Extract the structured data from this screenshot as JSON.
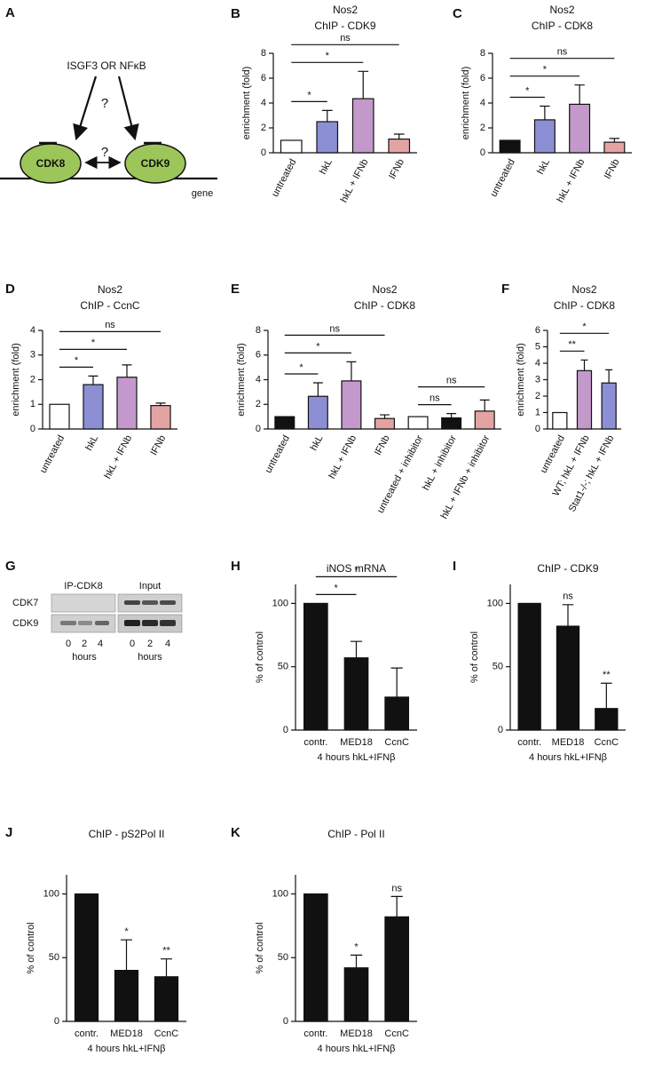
{
  "panel_a": {
    "letter": "A",
    "activators": "ISGF3 OR NFκB",
    "question_1": "?",
    "question_2": "?",
    "kinase_1": "CDK8",
    "kinase_2": "CDK9",
    "gene": "gene"
  },
  "panel_g": {
    "letter": "G",
    "ip_label": "IP-CDK8",
    "input_label": "Input",
    "rows": [
      "CDK7",
      "CDK9"
    ],
    "ip_hours": [
      "0",
      "2",
      "4"
    ],
    "input_hours": [
      "0",
      "2",
      "4"
    ],
    "hours_label": "hours"
  },
  "chart_data": [
    {
      "type": "bar",
      "panel": "B",
      "title": "Nos2",
      "subtitle": "ChIP - CDK9",
      "ylabel": "enrichment (fold)",
      "categories": [
        "untreated",
        "hkL",
        "hkL + IFNb",
        "IFNb"
      ],
      "values": [
        1,
        2.5,
        4.35,
        1.1
      ],
      "errors": [
        null,
        0.9,
        2.2,
        0.4
      ],
      "colors": [
        "#ffffff",
        "#8c8fd3",
        "#c399cc",
        "#e4a3a3"
      ],
      "ylim": [
        0,
        8
      ],
      "yticks": [
        0,
        2,
        4,
        6,
        8
      ],
      "comparisons": [
        {
          "from": "untreated",
          "to": "hkL",
          "label": "*"
        },
        {
          "from": "untreated",
          "to": "hkL + IFNb",
          "label": "*"
        },
        {
          "from": "untreated",
          "to": "IFNb",
          "label": "ns"
        }
      ]
    },
    {
      "type": "bar",
      "panel": "C",
      "title": "Nos2",
      "subtitle": "ChIP - CDK8",
      "ylabel": "enrichment (fold)",
      "categories": [
        "untreated",
        "hkL",
        "hkL + IFNb",
        "IFNb"
      ],
      "values": [
        1,
        2.65,
        3.9,
        0.85
      ],
      "errors": [
        null,
        1.1,
        1.55,
        0.3
      ],
      "colors": [
        "#111111",
        "#8c8fd3",
        "#c399cc",
        "#e4a3a3"
      ],
      "ylim": [
        0,
        8
      ],
      "yticks": [
        0,
        2,
        4,
        6,
        8
      ],
      "comparisons": [
        {
          "from": "untreated",
          "to": "hkL",
          "label": "*"
        },
        {
          "from": "untreated",
          "to": "hkL + IFNb",
          "label": "*"
        },
        {
          "from": "untreated",
          "to": "IFNb",
          "label": "ns"
        }
      ]
    },
    {
      "type": "bar",
      "panel": "D",
      "title": "Nos2",
      "subtitle": "ChIP - CcnC",
      "ylabel": "enrichment (fold)",
      "categories": [
        "untreated",
        "hkL",
        "hkL + IFNb",
        "IFNb"
      ],
      "values": [
        1,
        1.8,
        2.1,
        0.95
      ],
      "errors": [
        null,
        0.35,
        0.5,
        0.1
      ],
      "colors": [
        "#ffffff",
        "#8c8fd3",
        "#c399cc",
        "#e4a3a3"
      ],
      "ylim": [
        0,
        4
      ],
      "yticks": [
        0,
        1,
        2,
        3,
        4
      ],
      "comparisons": [
        {
          "from": "untreated",
          "to": "hkL",
          "label": "*"
        },
        {
          "from": "untreated",
          "to": "hkL + IFNb",
          "label": "*"
        },
        {
          "from": "untreated",
          "to": "IFNb",
          "label": "ns"
        }
      ]
    },
    {
      "type": "bar",
      "panel": "E",
      "title": "Nos2",
      "subtitle": "ChIP - CDK8",
      "ylabel": "enrichment (fold)",
      "categories": [
        "untreated",
        "hkL",
        "hkL + IFNb",
        "IFNb",
        "untreated + inhibitor",
        "hkL + inhibitor",
        "hkL + IFNb + inhibitor"
      ],
      "values": [
        1,
        2.65,
        3.9,
        0.85,
        1,
        0.9,
        1.45
      ],
      "errors": [
        null,
        1.1,
        1.55,
        0.3,
        null,
        0.35,
        0.9
      ],
      "colors": [
        "#111111",
        "#8c8fd3",
        "#c399cc",
        "#e4a3a3",
        "#ffffff",
        "#111111",
        "#e4a3a3"
      ],
      "ylim": [
        0,
        8
      ],
      "yticks": [
        0,
        2,
        4,
        6,
        8
      ],
      "comparisons": [
        {
          "from": "untreated",
          "to": "hkL",
          "label": "*"
        },
        {
          "from": "untreated",
          "to": "hkL + IFNb",
          "label": "*"
        },
        {
          "from": "untreated",
          "to": "IFNb",
          "label": "ns"
        },
        {
          "from": "untreated + inhibitor",
          "to": "hkL + inhibitor",
          "label": "ns"
        },
        {
          "from": "untreated + inhibitor",
          "to": "hkL + IFNb + inhibitor",
          "label": "ns"
        }
      ]
    },
    {
      "type": "bar",
      "panel": "F",
      "title": "Nos2",
      "subtitle": "ChIP - CDK8",
      "ylabel": "enrichment (fold)",
      "categories": [
        "untreated",
        "WT; hkL + IFNb",
        "Stat1-/-; hkL + IFNb"
      ],
      "values": [
        1,
        3.55,
        2.8
      ],
      "errors": [
        null,
        0.65,
        0.8
      ],
      "colors": [
        "#ffffff",
        "#c399cc",
        "#8c8fd3"
      ],
      "ylim": [
        0,
        6
      ],
      "yticks": [
        0,
        1,
        2,
        3,
        4,
        5,
        6
      ],
      "comparisons": [
        {
          "from": "untreated",
          "to": "WT; hkL + IFNb",
          "label": "**"
        },
        {
          "from": "untreated",
          "to": "Stat1-/-; hkL + IFNb",
          "label": "*"
        }
      ]
    },
    {
      "type": "bar",
      "panel": "H",
      "title": "iNOS mRNA",
      "ylabel": "% of control",
      "xlabel": "4 hours hkL+IFNβ",
      "categories": [
        "contr.",
        "MED18",
        "CcnC"
      ],
      "values": [
        100,
        57,
        26
      ],
      "errors": [
        null,
        13,
        23
      ],
      "color": "#111111",
      "ylim": [
        0,
        115
      ],
      "yticks": [
        0,
        50,
        100
      ],
      "comparisons": [
        {
          "from": "contr.",
          "to": "MED18",
          "label": "*"
        },
        {
          "from": "contr.",
          "to": "CcnC",
          "label": "*"
        }
      ]
    },
    {
      "type": "bar",
      "panel": "I",
      "title": "ChIP - CDK9",
      "ylabel": "% of control",
      "xlabel": "4 hours hkL+IFNβ",
      "categories": [
        "contr.",
        "MED18",
        "CcnC"
      ],
      "values": [
        100,
        82,
        17
      ],
      "errors": [
        null,
        17,
        20
      ],
      "color": "#111111",
      "ylim": [
        0,
        115
      ],
      "yticks": [
        0,
        50,
        100
      ],
      "bar_labels": [
        null,
        "ns",
        "**"
      ]
    },
    {
      "type": "bar",
      "panel": "J",
      "title": "ChIP -  pS2Pol II",
      "ylabel": "% of control",
      "xlabel": "4 hours hkL+IFNβ",
      "categories": [
        "contr.",
        "MED18",
        "CcnC"
      ],
      "values": [
        100,
        40,
        35
      ],
      "errors": [
        null,
        24,
        14
      ],
      "color": "#111111",
      "ylim": [
        0,
        115
      ],
      "yticks": [
        0,
        50,
        100
      ],
      "bar_labels": [
        null,
        "*",
        "**"
      ]
    },
    {
      "type": "bar",
      "panel": "K",
      "title": "ChIP - Pol II",
      "ylabel": "% of control",
      "xlabel": "4 hours hkL+IFNβ",
      "categories": [
        "contr.",
        "MED18",
        "CcnC"
      ],
      "values": [
        100,
        42,
        82
      ],
      "errors": [
        null,
        10,
        16
      ],
      "color": "#111111",
      "ylim": [
        0,
        115
      ],
      "yticks": [
        0,
        50,
        100
      ],
      "bar_labels": [
        null,
        "*",
        "ns"
      ]
    }
  ]
}
